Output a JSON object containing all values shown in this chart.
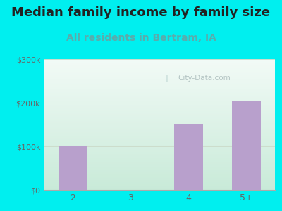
{
  "title": "Median family income by family size",
  "subtitle": "All residents in Bertram, IA",
  "categories": [
    "2",
    "3",
    "4",
    "5+"
  ],
  "values": [
    100000,
    0,
    150000,
    205000
  ],
  "bar_color": "#b8a0cc",
  "ylim": [
    0,
    300000
  ],
  "yticks": [
    0,
    100000,
    200000,
    300000
  ],
  "ytick_labels": [
    "$0",
    "$100k",
    "$200k",
    "$300k"
  ],
  "title_fontsize": 13,
  "subtitle_fontsize": 10,
  "title_color": "#222222",
  "subtitle_color": "#5aacac",
  "tick_color": "#666666",
  "bg_outer": "#00efef",
  "watermark": "City-Data.com",
  "bar_width": 0.5,
  "plot_bg_topleft": "#e8f8f0",
  "plot_bg_topright": "#f8f8f8",
  "plot_bg_bottom": "#d8f0e0",
  "grid_color": "#ccddcc",
  "spine_color": "#aaaaaa"
}
